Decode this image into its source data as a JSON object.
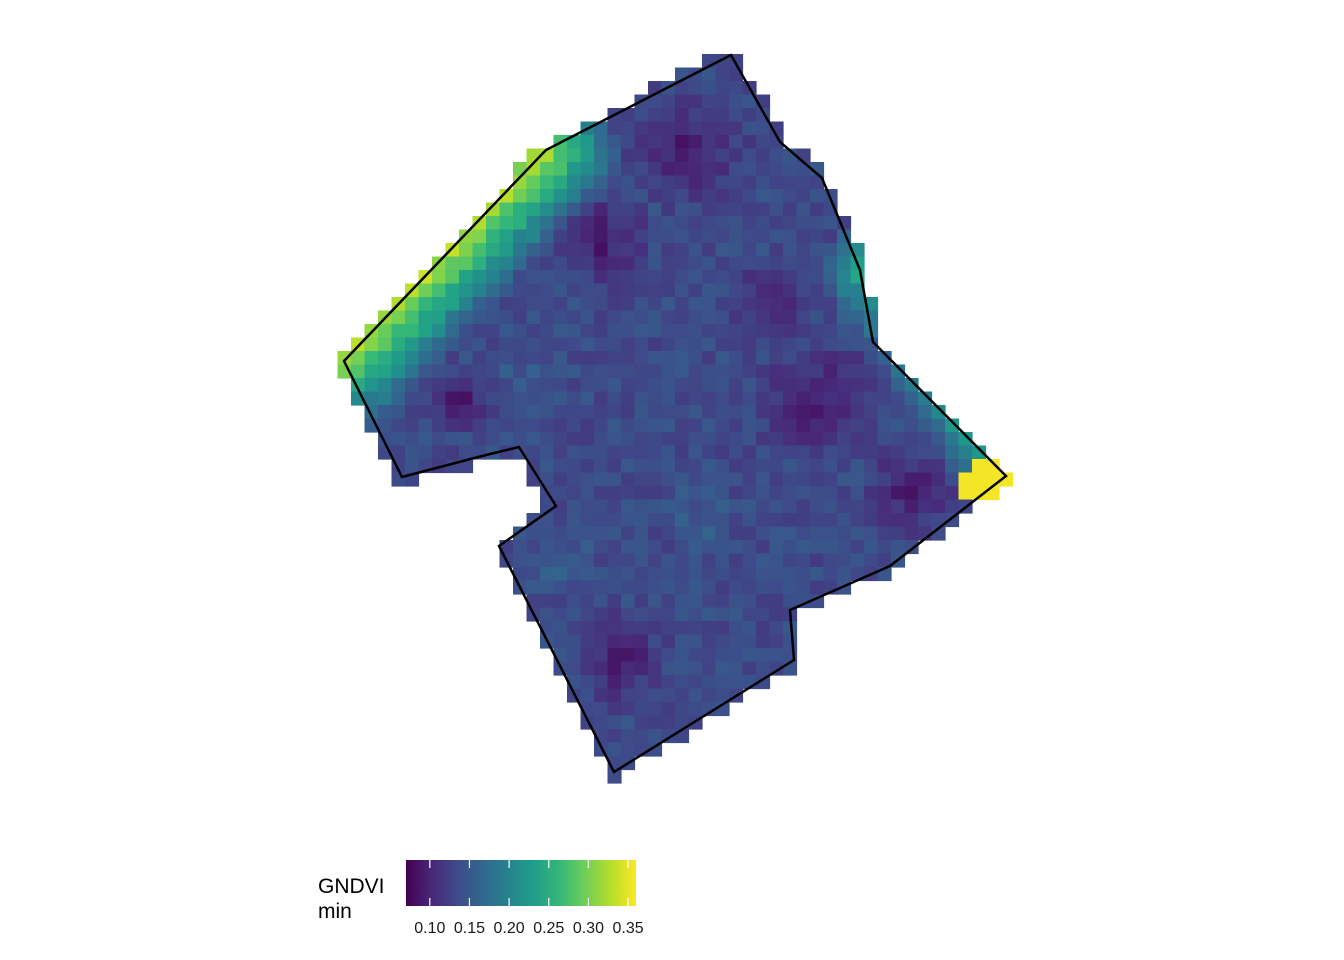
{
  "map": {
    "variable": "GNDVI",
    "statistic": "min",
    "colormap": "viridis",
    "raster_range": [
      0.07,
      0.36
    ],
    "colors": {
      "background": "#ffffff",
      "outline": "#000000",
      "viridis_stops": [
        "#440154",
        "#482878",
        "#3e4a89",
        "#31688e",
        "#26828e",
        "#1f9e89",
        "#35b779",
        "#6ece58",
        "#b5de2b",
        "#fde725"
      ]
    }
  },
  "legend": {
    "title_line1": "GNDVI",
    "title_line2": "min",
    "ticks": [
      {
        "value": 0.1,
        "label": "0.10"
      },
      {
        "value": 0.15,
        "label": "0.15"
      },
      {
        "value": 0.2,
        "label": "0.20"
      },
      {
        "value": 0.25,
        "label": "0.25"
      },
      {
        "value": 0.3,
        "label": "0.30"
      },
      {
        "value": 0.35,
        "label": "0.35"
      }
    ]
  }
}
